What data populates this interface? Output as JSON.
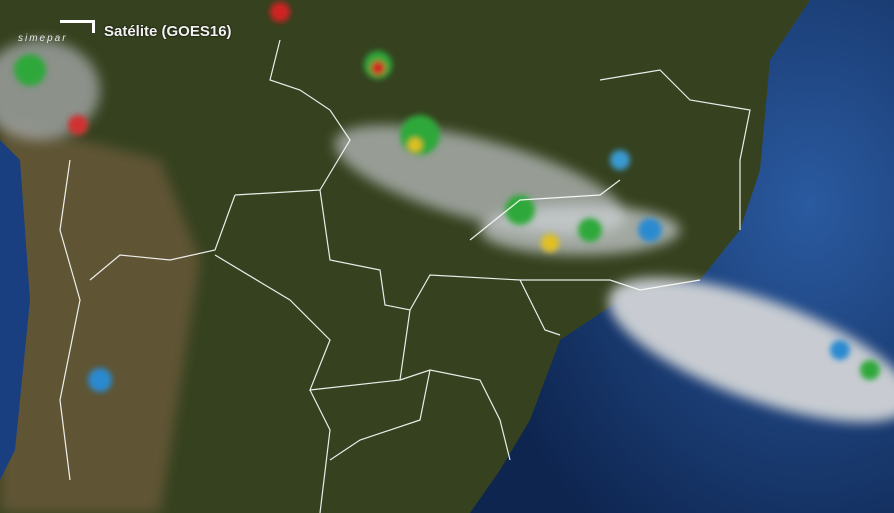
{
  "header": {
    "logo": "simepar",
    "title": "Satélite (GOES16)"
  },
  "colors": {
    "land": "#3a4526",
    "ocean": "#1d3f7a",
    "cloud": "#d8dde2",
    "borders": "#ffffff"
  }
}
